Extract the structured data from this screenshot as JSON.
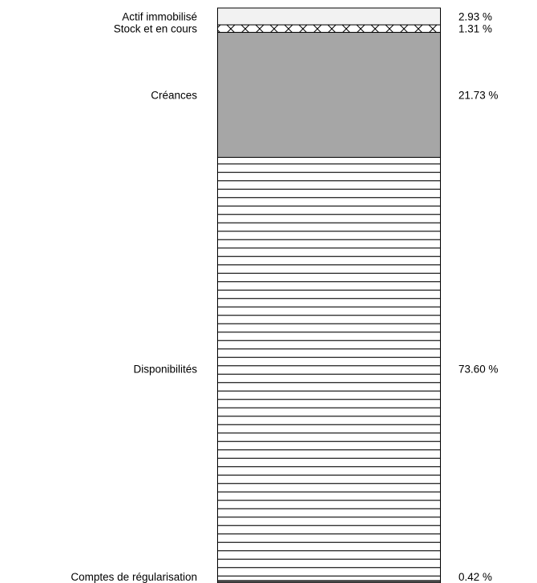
{
  "chart_data": {
    "type": "bar",
    "stacked": true,
    "orientation": "vertical",
    "categories": [
      "Actif immobilisé",
      "Stock et en cours",
      "Créances",
      "Disponibilités",
      "Comptes de régularisation"
    ],
    "values": [
      2.93,
      1.31,
      21.73,
      73.6,
      0.42
    ],
    "value_labels": [
      "2.93 %",
      "1.31 %",
      "21.73 %",
      "73.60 %",
      "0.42 %"
    ],
    "unit": "%",
    "title": "",
    "xlabel": "",
    "ylabel": "",
    "segments": [
      {
        "name": "Actif immobilisé",
        "value": 2.93,
        "label": "2.93 %",
        "fill": "#f2f2f2",
        "pattern": "solid"
      },
      {
        "name": "Stock et en cours",
        "value": 1.31,
        "label": "1.31 %",
        "fill": "#ffffff",
        "pattern": "crosshatch"
      },
      {
        "name": "Créances",
        "value": 21.73,
        "label": "21.73 %",
        "fill": "#a6a6a6",
        "pattern": "solid"
      },
      {
        "name": "Disponibilités",
        "value": 73.6,
        "label": "73.60 %",
        "fill": "#ffffff",
        "pattern": "horizontal-lines"
      },
      {
        "name": "Comptes de régularisation",
        "value": 0.42,
        "label": "0.42 %",
        "fill": "#595959",
        "pattern": "solid"
      }
    ],
    "legend": "none",
    "grid": false,
    "axes_visible": false
  }
}
